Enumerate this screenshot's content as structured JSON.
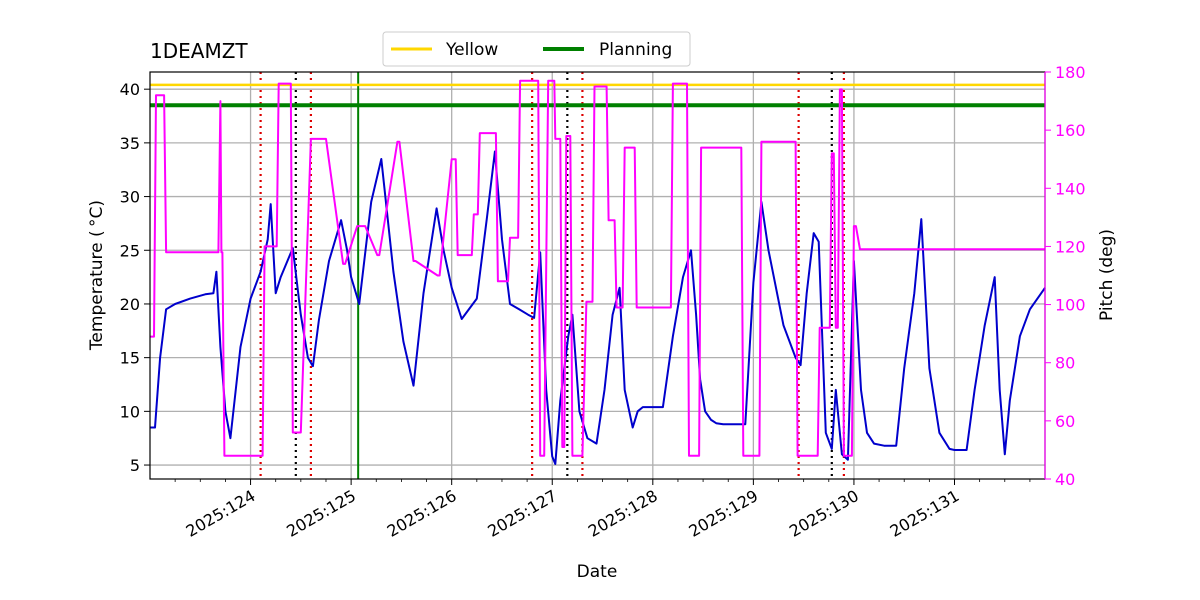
{
  "chart_data": {
    "type": "line",
    "title": "1DEAMZT",
    "xlabel": "Date",
    "ylabel": "Temperature ($^\\circ$C)",
    "ylabel_display": "Temperature ( °C)",
    "y2label": "Pitch (deg)",
    "xlim": [
      123.0,
      131.9
    ],
    "ylim": [
      3.7,
      41.6
    ],
    "y2lim": [
      40,
      180
    ],
    "grid": true,
    "legend_position": "top-center",
    "x_ticks": [
      {
        "value": 124,
        "label": "2025:124"
      },
      {
        "value": 125,
        "label": "2025:125"
      },
      {
        "value": 126,
        "label": "2025:126"
      },
      {
        "value": 127,
        "label": "2025:127"
      },
      {
        "value": 128,
        "label": "2025:128"
      },
      {
        "value": 129,
        "label": "2025:129"
      },
      {
        "value": 130,
        "label": "2025:130"
      },
      {
        "value": 131,
        "label": "2025:131"
      }
    ],
    "y_ticks": [
      5,
      10,
      15,
      20,
      25,
      30,
      35,
      40
    ],
    "y2_ticks": [
      40,
      60,
      80,
      100,
      120,
      140,
      160,
      180
    ],
    "legend": [
      {
        "label": "Yellow",
        "color": "#ffd700"
      },
      {
        "label": "Planning",
        "color": "#008000"
      }
    ],
    "limits": {
      "yellow": 40.4,
      "planning": 38.5
    },
    "vlines": {
      "red_dotted": [
        124.1,
        124.6,
        126.8,
        127.3,
        129.45,
        129.9
      ],
      "black_dotted": [
        124.45,
        127.15,
        129.78
      ],
      "green_solid": [
        125.07
      ]
    },
    "series": [
      {
        "name": "Temperature",
        "axis": "left",
        "color": "#0000cc",
        "x": [
          123.0,
          123.05,
          123.1,
          123.16,
          123.25,
          123.4,
          123.55,
          123.63,
          123.66,
          123.7,
          123.75,
          123.8,
          123.9,
          124.0,
          124.1,
          124.17,
          124.2,
          124.25,
          124.3,
          124.42,
          124.5,
          124.57,
          124.62,
          124.68,
          124.78,
          124.9,
          124.96,
          125.0,
          125.08,
          125.2,
          125.3,
          125.42,
          125.52,
          125.62,
          125.72,
          125.85,
          125.92,
          126.0,
          126.1,
          126.25,
          126.35,
          126.43,
          126.5,
          126.58,
          126.67,
          126.76,
          126.82,
          126.88,
          126.94,
          127.0,
          127.03,
          127.08,
          127.16,
          127.2,
          127.27,
          127.35,
          127.44,
          127.52,
          127.6,
          127.67,
          127.72,
          127.8,
          127.85,
          127.9,
          128.0,
          128.1,
          128.2,
          128.3,
          128.38,
          128.43,
          128.47,
          128.52,
          128.58,
          128.63,
          128.7,
          128.85,
          128.92,
          129.0,
          129.08,
          129.15,
          129.3,
          129.42,
          129.47,
          129.53,
          129.6,
          129.65,
          129.72,
          129.78,
          129.82,
          129.88,
          129.94,
          130.0,
          130.07,
          130.13,
          130.2,
          130.3,
          130.42,
          130.5,
          130.6,
          130.67,
          130.75,
          130.85,
          130.95,
          131.0,
          131.05,
          131.12,
          131.2,
          131.3,
          131.4,
          131.45,
          131.5,
          131.55,
          131.65,
          131.75,
          131.9
        ],
        "y": [
          8.5,
          8.5,
          15.0,
          19.5,
          20.0,
          20.5,
          20.9,
          21.0,
          23.0,
          16.0,
          10.0,
          7.5,
          16.0,
          20.5,
          23.0,
          26.0,
          29.3,
          21.0,
          22.5,
          25.2,
          19.0,
          15.0,
          14.2,
          18.5,
          24.0,
          27.8,
          25.0,
          22.5,
          20.0,
          29.5,
          33.5,
          23.0,
          16.5,
          12.4,
          21.0,
          28.9,
          25.0,
          21.5,
          18.6,
          20.5,
          28.0,
          34.2,
          26.0,
          20.0,
          19.5,
          19.0,
          18.7,
          24.8,
          12.0,
          5.8,
          5.1,
          11.0,
          17.0,
          19.0,
          10.0,
          7.5,
          7.0,
          12.0,
          19.0,
          21.5,
          12.0,
          8.5,
          10.0,
          10.4,
          10.4,
          10.4,
          17.0,
          22.5,
          25.0,
          19.0,
          13.0,
          10.0,
          9.2,
          8.9,
          8.8,
          8.8,
          8.8,
          22.0,
          29.5,
          25.0,
          18.0,
          15.0,
          14.3,
          21.0,
          26.6,
          25.8,
          8.0,
          6.5,
          12.0,
          6.0,
          5.5,
          24.0,
          12.0,
          8.0,
          7.0,
          6.8,
          6.8,
          14.0,
          21.0,
          27.9,
          14.0,
          8.0,
          6.5,
          6.4,
          6.4,
          6.4,
          12.0,
          18.0,
          22.5,
          12.0,
          6.0,
          11.0,
          17.0,
          19.5,
          21.5
        ]
      },
      {
        "name": "Pitch",
        "axis": "right",
        "color": "#ff00ff",
        "x": [
          123.0,
          123.04,
          123.06,
          123.08,
          123.14,
          123.16,
          123.2,
          123.52,
          123.53,
          123.54,
          123.56,
          123.58,
          123.68,
          123.7,
          123.71,
          123.72,
          123.74,
          123.76,
          123.9,
          124.1,
          124.12,
          124.14,
          124.16,
          124.2,
          124.21,
          124.22,
          124.24,
          124.26,
          124.28,
          124.38,
          124.4,
          124.42,
          124.5,
          124.6,
          124.62,
          124.64,
          124.75,
          124.92,
          124.94,
          125.06,
          125.08,
          125.1,
          125.14,
          125.26,
          125.28,
          125.46,
          125.48,
          125.62,
          125.64,
          125.86,
          125.88,
          126.0,
          126.04,
          126.06,
          126.2,
          126.22,
          126.26,
          126.28,
          126.44,
          126.46,
          126.56,
          126.58,
          126.66,
          126.68,
          126.86,
          126.88,
          126.9,
          126.92,
          126.96,
          127.02,
          127.03,
          127.04,
          127.08,
          127.1,
          127.12,
          127.14,
          127.18,
          127.2,
          127.22,
          127.28,
          127.3,
          127.34,
          127.4,
          127.42,
          127.54,
          127.56,
          127.62,
          127.64,
          127.7,
          127.72,
          127.82,
          127.84,
          128.18,
          128.2,
          128.34,
          128.36,
          128.46,
          128.48,
          128.88,
          128.9,
          129.06,
          129.08,
          129.42,
          129.44,
          129.64,
          129.66,
          129.74,
          129.76,
          129.78,
          129.8,
          129.82,
          129.84,
          129.86,
          129.88,
          129.9,
          129.98,
          130.0,
          130.02,
          130.06,
          130.08,
          130.38,
          130.4,
          130.62,
          130.64,
          131.04,
          131.06,
          131.26,
          131.28,
          131.36,
          131.38,
          131.46,
          131.48,
          131.54,
          131.56,
          131.9
        ],
        "y": [
          89,
          89,
          172,
          172,
          172,
          118,
          118,
          118,
          118,
          118,
          118,
          118,
          118,
          170,
          118,
          118,
          48,
          48,
          48,
          48,
          48,
          120,
          120,
          120,
          120,
          120,
          120,
          120,
          176,
          176,
          176,
          56,
          56,
          157,
          157,
          157,
          157,
          114,
          114,
          127,
          127,
          127,
          127,
          117,
          117,
          156,
          156,
          115,
          115,
          110,
          110,
          150,
          150,
          117,
          117,
          131,
          131,
          159,
          159,
          108,
          108,
          123,
          123,
          177,
          177,
          48,
          48,
          48,
          177,
          177,
          157,
          157,
          157,
          51,
          51,
          158,
          158,
          48,
          48,
          48,
          48,
          101,
          101,
          175,
          175,
          129,
          129,
          99,
          99,
          154,
          154,
          99,
          99,
          176,
          176,
          48,
          48,
          154,
          154,
          48,
          48,
          156,
          156,
          48,
          48,
          92,
          92,
          92,
          152,
          152,
          92,
          92,
          174,
          174,
          48,
          48,
          127,
          127,
          119,
          119,
          119,
          119,
          119,
          119,
          119,
          119,
          119,
          119,
          119,
          119,
          119,
          119,
          119,
          119,
          119
        ]
      }
    ]
  }
}
